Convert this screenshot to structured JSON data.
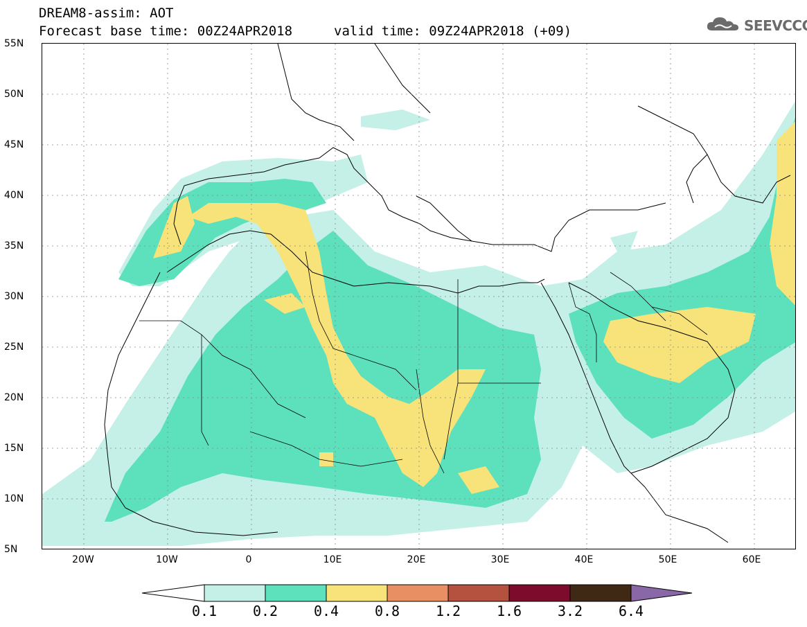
{
  "header": {
    "title_line1": "DREAM8-assim: AOT",
    "title_line2": "Forecast base time: 00Z24APR2018",
    "valid_time": "valid time: 09Z24APR2018 (+09)",
    "logo_text": "SEEVCCC",
    "logo_icon": "cloud-icon"
  },
  "map": {
    "region": "North Africa, Mediterranean and Middle East",
    "lat_labels": [
      "55N",
      "50N",
      "45N",
      "40N",
      "35N",
      "30N",
      "25N",
      "20N",
      "15N",
      "10N",
      "5N"
    ],
    "lon_labels": [
      "20W",
      "10W",
      "0",
      "10E",
      "20E",
      "30E",
      "40E",
      "50E",
      "60E"
    ],
    "lat_range": [
      5,
      55
    ],
    "lon_range": [
      -25,
      65
    ],
    "grid": "dotted"
  },
  "legend": {
    "levels": [
      "0.1",
      "0.2",
      "0.4",
      "0.8",
      "1.2",
      "1.6",
      "3.2",
      "6.4"
    ],
    "colors": [
      "#ffffff",
      "#c4f0e8",
      "#5de0bc",
      "#f7e37a",
      "#e88f63",
      "#b5513f",
      "#7d0b2b",
      "#3f2814",
      "#8a68a8"
    ]
  }
}
